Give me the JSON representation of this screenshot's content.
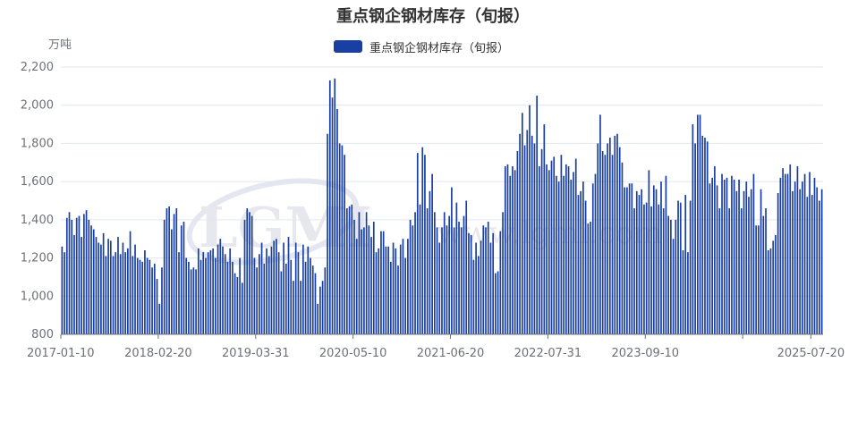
{
  "chart_data": {
    "type": "bar",
    "title": "重点钢企钢材库存（旬报）",
    "unit_label": "万吨",
    "legend": [
      "重点钢企钢材库存（旬报）"
    ],
    "legend_position": "top-center",
    "color": "#1a3fa3",
    "ylim": [
      800,
      2200
    ],
    "y_ticks": [
      "800",
      "1,000",
      "1,200",
      "1,400",
      "1,600",
      "1,800",
      "2,000",
      "2,200"
    ],
    "y_tick_values": [
      800,
      1000,
      1200,
      1400,
      1600,
      1800,
      2000,
      2200
    ],
    "x_tick_labels": [
      "2017-01-10",
      "2018-02-20",
      "2019-03-31",
      "2020-05-10",
      "2021-06-20",
      "2022-07-31",
      "2023-09-10",
      "2025-07-20"
    ],
    "x_tick_label_index": [
      0,
      40,
      80,
      120,
      160,
      200,
      240,
      308
    ],
    "x_tick_mark_index": [
      0,
      40,
      80,
      120,
      160,
      200,
      240,
      280,
      308
    ],
    "grid": true,
    "watermark": {
      "logo_text": "LGMI",
      "url_text": "www.lgmi.com"
    },
    "series": [
      {
        "name": "重点钢企钢材库存（旬报）",
        "values": [
          1260,
          1230,
          1410,
          1440,
          1400,
          1320,
          1410,
          1420,
          1310,
          1430,
          1450,
          1400,
          1370,
          1350,
          1310,
          1280,
          1270,
          1330,
          1210,
          1300,
          1290,
          1210,
          1230,
          1310,
          1220,
          1280,
          1230,
          1250,
          1340,
          1210,
          1270,
          1200,
          1190,
          1180,
          1240,
          1200,
          1190,
          1150,
          1170,
          1090,
          960,
          1150,
          1400,
          1460,
          1470,
          1350,
          1430,
          1460,
          1230,
          1370,
          1390,
          1200,
          1180,
          1140,
          1150,
          1140,
          1250,
          1190,
          1230,
          1200,
          1230,
          1240,
          1250,
          1200,
          1270,
          1300,
          1260,
          1220,
          1180,
          1250,
          1180,
          1120,
          1100,
          1200,
          1070,
          1400,
          1460,
          1440,
          1420,
          1200,
          1150,
          1220,
          1280,
          1170,
          1250,
          1210,
          1260,
          1290,
          1300,
          1230,
          1130,
          1280,
          1170,
          1310,
          1190,
          1080,
          1280,
          1230,
          1080,
          1270,
          1180,
          1260,
          1200,
          1160,
          1120,
          960,
          1050,
          1080,
          1150,
          1850,
          2130,
          2040,
          2140,
          1980,
          1800,
          1790,
          1740,
          1460,
          1470,
          1480,
          1400,
          1300,
          1440,
          1350,
          1360,
          1440,
          1370,
          1310,
          1390,
          1230,
          1250,
          1340,
          1340,
          1260,
          1260,
          1180,
          1280,
          1250,
          1160,
          1270,
          1300,
          1200,
          1300,
          1400,
          1370,
          1440,
          1750,
          1480,
          1780,
          1740,
          1460,
          1550,
          1640,
          1440,
          1360,
          1280,
          1360,
          1440,
          1370,
          1420,
          1570,
          1360,
          1490,
          1390,
          1360,
          1420,
          1500,
          1330,
          1320,
          1190,
          1280,
          1210,
          1290,
          1370,
          1360,
          1390,
          1280,
          1330,
          1120,
          1130,
          1340,
          1440,
          1680,
          1690,
          1630,
          1680,
          1660,
          1760,
          1850,
          1960,
          1790,
          1870,
          2000,
          1840,
          1800,
          2050,
          1680,
          1770,
          1900,
          1690,
          1660,
          1710,
          1730,
          1630,
          1600,
          1740,
          1630,
          1690,
          1680,
          1610,
          1650,
          1720,
          1530,
          1550,
          1600,
          1500,
          1380,
          1390,
          1590,
          1640,
          1800,
          1950,
          1760,
          1740,
          1800,
          1830,
          1740,
          1840,
          1850,
          1780,
          1700,
          1570,
          1570,
          1590,
          1590,
          1460,
          1550,
          1530,
          1560,
          1480,
          1490,
          1660,
          1470,
          1580,
          1560,
          1480,
          1600,
          1460,
          1630,
          1420,
          1400,
          1300,
          1400,
          1500,
          1490,
          1240,
          1530,
          1230,
          1500,
          1900,
          1800,
          1950,
          1950,
          1840,
          1830,
          1810,
          1590,
          1620,
          1680,
          1580,
          1460,
          1640,
          1610,
          1620,
          1460,
          1630,
          1610,
          1550,
          1610,
          1460,
          1550,
          1600,
          1520,
          1560,
          1640,
          1370,
          1370,
          1560,
          1420,
          1460,
          1240,
          1250,
          1290,
          1320,
          1540,
          1620,
          1670,
          1640,
          1640,
          1690,
          1550,
          1600,
          1680,
          1560,
          1600,
          1640,
          1520,
          1650,
          1530,
          1620,
          1570,
          1500,
          1560
        ]
      }
    ]
  }
}
